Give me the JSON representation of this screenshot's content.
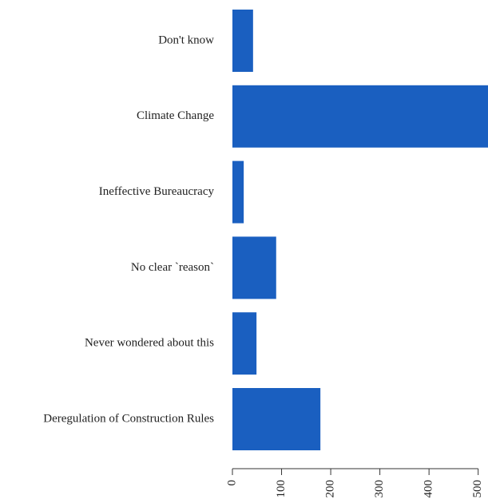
{
  "chart_data": {
    "type": "barh",
    "categories": [
      "Don't know",
      "Climate Change",
      "Ineffective Bureaucracy",
      "No clear `reason`",
      "Never wondered about this",
      "Deregulation of Construction Rules"
    ],
    "values": [
      42,
      520,
      23,
      89,
      49,
      179
    ],
    "color": "#1a5fc0",
    "xlim": [
      0,
      520
    ],
    "xticks": [
      0,
      100,
      200,
      300,
      400,
      500
    ]
  }
}
